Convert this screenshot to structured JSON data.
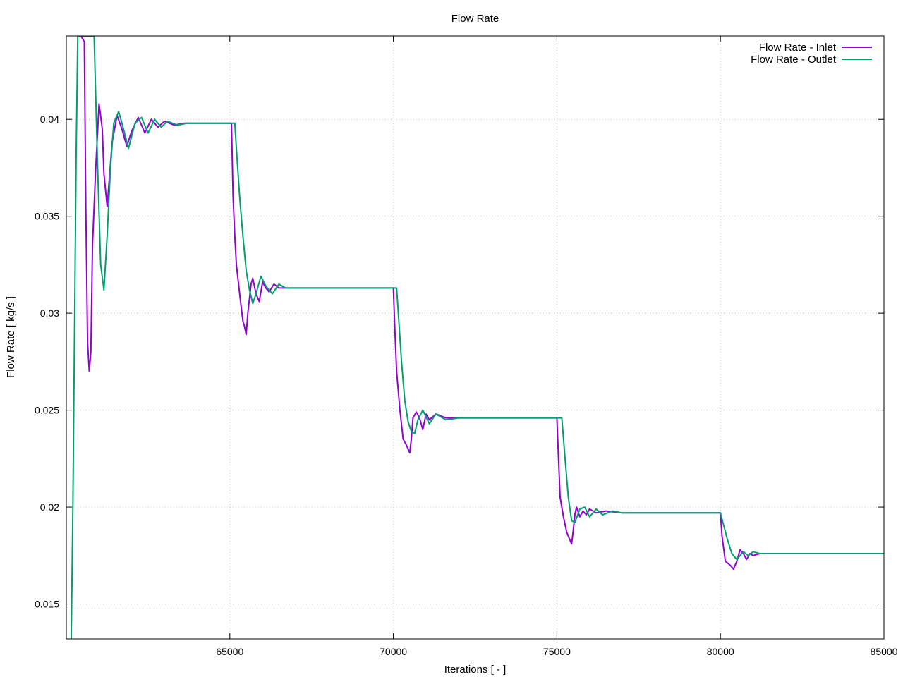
{
  "chart_data": {
    "type": "line",
    "title": "Flow Rate",
    "xlabel": "Iterations [ - ]",
    "ylabel": "Flow Rate [ kg/s ]",
    "xlim": [
      60000,
      85000
    ],
    "ylim": [
      0.0132,
      0.0443
    ],
    "grid": true,
    "legend_position": "top-right",
    "x_ticks": [
      65000,
      70000,
      75000,
      80000,
      85000
    ],
    "x_tick_labels": [
      "65000",
      "70000",
      "75000",
      "80000",
      "85000"
    ],
    "y_ticks": [
      0.015,
      0.02,
      0.025,
      0.03,
      0.035,
      0.04
    ],
    "y_tick_labels": [
      "0.015",
      "0.02",
      "0.025",
      "0.03",
      "0.035",
      "0.04"
    ],
    "series": [
      {
        "name": "Flow Rate - Inlet",
        "color": "#9400d3",
        "x": [
          60450,
          60550,
          60600,
          60650,
          60700,
          60750,
          60800,
          60900,
          61000,
          61100,
          61150,
          61250,
          61400,
          61550,
          61700,
          61850,
          62000,
          62200,
          62400,
          62600,
          62800,
          63000,
          63300,
          63600,
          64000,
          64500,
          65050,
          65100,
          65150,
          65200,
          65300,
          65400,
          65450,
          65500,
          65550,
          65650,
          65700,
          65800,
          65900,
          66000,
          66100,
          66200,
          66350,
          66500,
          66700,
          67000,
          68000,
          69000,
          70000,
          70050,
          70100,
          70200,
          70300,
          70400,
          70500,
          70550,
          70600,
          70700,
          70800,
          70900,
          71000,
          71100,
          71300,
          71600,
          72000,
          73000,
          75000,
          75050,
          75100,
          75200,
          75300,
          75400,
          75450,
          75500,
          75550,
          75600,
          75700,
          75800,
          75900,
          76000,
          76200,
          76500,
          77000,
          78000,
          79000,
          80000,
          80050,
          80150,
          80300,
          80400,
          80500,
          80600,
          80700,
          80800,
          80900,
          81000,
          81200,
          81500,
          82000,
          83000,
          84000,
          85000
        ],
        "y": [
          0.0443,
          0.044,
          0.035,
          0.0285,
          0.027,
          0.028,
          0.0335,
          0.0375,
          0.0408,
          0.0395,
          0.0372,
          0.0355,
          0.0388,
          0.0402,
          0.0395,
          0.0386,
          0.0394,
          0.0401,
          0.0393,
          0.04,
          0.0396,
          0.0399,
          0.0397,
          0.0398,
          0.0398,
          0.0398,
          0.0398,
          0.036,
          0.034,
          0.0325,
          0.031,
          0.0296,
          0.0293,
          0.0289,
          0.03,
          0.0315,
          0.0318,
          0.031,
          0.0306,
          0.0316,
          0.0313,
          0.0311,
          0.0315,
          0.0313,
          0.0313,
          0.0313,
          0.0313,
          0.0313,
          0.0313,
          0.029,
          0.027,
          0.025,
          0.0235,
          0.0232,
          0.0228,
          0.0235,
          0.0246,
          0.0249,
          0.0246,
          0.024,
          0.0248,
          0.0245,
          0.0248,
          0.0246,
          0.0246,
          0.0246,
          0.0246,
          0.0225,
          0.0205,
          0.0195,
          0.0187,
          0.0183,
          0.0181,
          0.0188,
          0.0196,
          0.02,
          0.0195,
          0.0198,
          0.0196,
          0.0199,
          0.0197,
          0.0198,
          0.0197,
          0.0197,
          0.0197,
          0.0197,
          0.0185,
          0.0172,
          0.017,
          0.0168,
          0.0172,
          0.0178,
          0.0176,
          0.0173,
          0.0176,
          0.0175,
          0.0176,
          0.0176,
          0.0176,
          0.0176,
          0.0176,
          0.0176
        ]
      },
      {
        "name": "Flow Rate - Outlet",
        "color": "#009e73",
        "x": [
          60150,
          60200,
          60250,
          60300,
          60350,
          60450,
          60550,
          60650,
          60750,
          60850,
          60950,
          61050,
          61150,
          61250,
          61350,
          61450,
          61600,
          61750,
          61900,
          62100,
          62300,
          62500,
          62700,
          62900,
          63100,
          63400,
          63700,
          64000,
          64500,
          65000,
          65150,
          65200,
          65300,
          65400,
          65500,
          65600,
          65700,
          65800,
          65950,
          66100,
          66300,
          66500,
          66700,
          67000,
          68000,
          69000,
          70000,
          70100,
          70150,
          70250,
          70350,
          70450,
          70550,
          70650,
          70750,
          70900,
          71100,
          71300,
          71600,
          72000,
          73000,
          75000,
          75150,
          75250,
          75350,
          75450,
          75550,
          75700,
          75850,
          76000,
          76200,
          76400,
          76700,
          77000,
          78000,
          79000,
          80000,
          80200,
          80350,
          80500,
          80600,
          80700,
          80850,
          81000,
          81200,
          81500,
          82000,
          83000,
          84000,
          85000
        ],
        "y": [
          0.0132,
          0.02,
          0.029,
          0.038,
          0.0443,
          0.0443,
          0.0443,
          0.0443,
          0.0443,
          0.0443,
          0.038,
          0.0325,
          0.0312,
          0.034,
          0.0375,
          0.0398,
          0.0404,
          0.0395,
          0.0385,
          0.0398,
          0.0401,
          0.0393,
          0.04,
          0.0396,
          0.0399,
          0.0397,
          0.0398,
          0.0398,
          0.0398,
          0.0398,
          0.0398,
          0.0385,
          0.036,
          0.034,
          0.0322,
          0.0312,
          0.0305,
          0.031,
          0.0319,
          0.0314,
          0.031,
          0.0315,
          0.0313,
          0.0313,
          0.0313,
          0.0313,
          0.0313,
          0.0313,
          0.03,
          0.0275,
          0.0255,
          0.0244,
          0.0239,
          0.0238,
          0.0245,
          0.025,
          0.0243,
          0.0248,
          0.0245,
          0.0246,
          0.0246,
          0.0246,
          0.0246,
          0.0225,
          0.0205,
          0.0193,
          0.0192,
          0.0199,
          0.02,
          0.0195,
          0.0199,
          0.0196,
          0.0198,
          0.0197,
          0.0197,
          0.0197,
          0.0197,
          0.0184,
          0.0176,
          0.0173,
          0.0175,
          0.0177,
          0.0175,
          0.0177,
          0.0176,
          0.0176,
          0.0176,
          0.0176,
          0.0176,
          0.0176
        ]
      }
    ]
  }
}
